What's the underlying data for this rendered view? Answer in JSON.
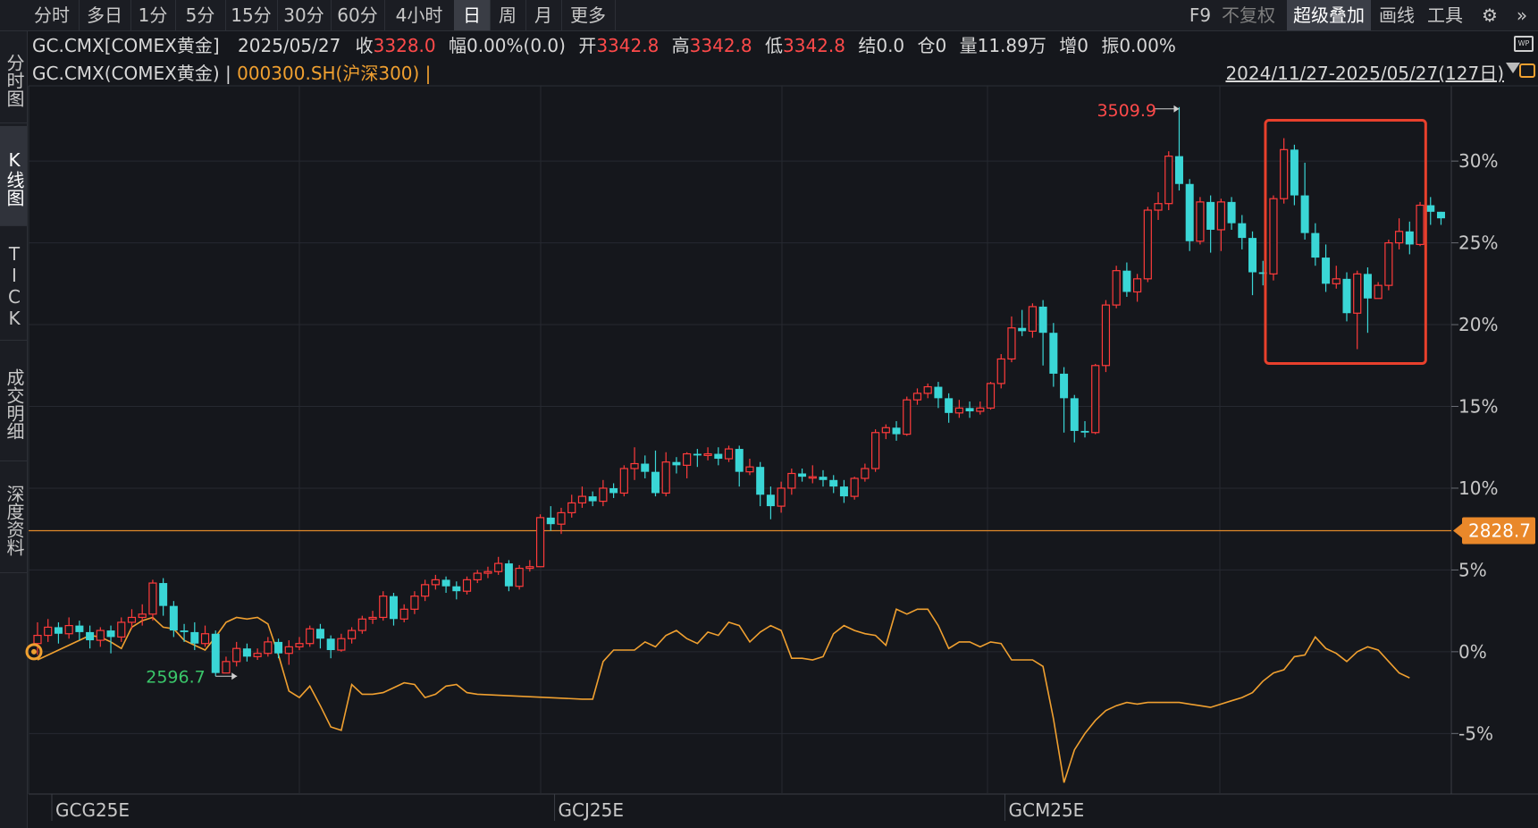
{
  "toolbar": {
    "periods": [
      "分时",
      "多日",
      "1分",
      "5分",
      "15分",
      "30分",
      "60分",
      "4小时",
      "日",
      "周",
      "月",
      "更多"
    ],
    "active_period": "日",
    "right": {
      "f9": "F9",
      "fuquan": "不复权",
      "overlay": "超级叠加",
      "draw": "画线",
      "tools": "工具"
    }
  },
  "sidebar": {
    "tabs": [
      "分时图",
      "K线图",
      "TICK",
      "成交明细",
      "深度资料"
    ],
    "active": "K线图"
  },
  "header": {
    "symbol": "GC.CMX[COMEX黄金]",
    "date": "2025/05/27",
    "close_label": "收",
    "close": "3328.0",
    "change_label": "幅",
    "change": "0.00%(0.0)",
    "open_label": "开",
    "open": "3342.8",
    "high_label": "高",
    "high": "3342.8",
    "low_label": "低",
    "low": "3342.8",
    "settle_label": "结",
    "settle": "0.0",
    "oi_label": "仓",
    "oi": "0",
    "vol_label": "量",
    "vol": "11.89万",
    "inc_label": "增",
    "inc": "0",
    "amp_label": "振",
    "amp": "0.00%"
  },
  "overlay_line": {
    "main": "GC.CMX(COMEX黄金)",
    "sep": " | ",
    "compare": "000300.SH(沪深300)",
    "sep2": " |",
    "range": "2024/11/27-2025/05/27(127日)"
  },
  "chart_data": {
    "type": "candlestick",
    "y_axis_labels": [
      "30%",
      "25%",
      "20%",
      "15%",
      "10%",
      "5%",
      "0%",
      "-5%"
    ],
    "y_ticks": [
      30,
      25,
      20,
      15,
      10,
      5,
      0,
      -5
    ],
    "ylim": [
      -8.7,
      34.6
    ],
    "x_labels": [
      "GCG25E",
      "GCJ25E",
      "GCM25E"
    ],
    "x_label_index": [
      0,
      48,
      91
    ],
    "max_label": "3509.9",
    "min_label": "2596.7",
    "price_line_label": "2828.7",
    "price_line_pct": 7.4,
    "candles_pct": [
      [
        0.5,
        1.0,
        1.8,
        -0.2
      ],
      [
        1.0,
        1.5,
        2.0,
        0.6
      ],
      [
        1.5,
        1.1,
        1.8,
        0.5
      ],
      [
        1.1,
        1.6,
        2.1,
        0.8
      ],
      [
        1.6,
        1.2,
        1.9,
        0.7
      ],
      [
        1.2,
        0.7,
        1.6,
        0.2
      ],
      [
        0.7,
        1.3,
        1.5,
        0.3
      ],
      [
        1.3,
        0.9,
        1.6,
        -0.1
      ],
      [
        0.9,
        1.8,
        2.1,
        0.6
      ],
      [
        1.8,
        2.1,
        2.6,
        1.4
      ],
      [
        2.1,
        2.3,
        2.9,
        1.6
      ],
      [
        2.3,
        4.2,
        4.4,
        1.9
      ],
      [
        4.2,
        2.8,
        4.5,
        2.2
      ],
      [
        2.8,
        1.3,
        3.1,
        0.9
      ],
      [
        1.3,
        1.2,
        1.7,
        0.6
      ],
      [
        1.2,
        0.5,
        1.8,
        0.1
      ],
      [
        0.5,
        1.1,
        1.6,
        0.3
      ],
      [
        1.1,
        -1.3,
        1.3,
        -1.5
      ],
      [
        -1.3,
        -0.6,
        -0.3,
        -1.2
      ],
      [
        -0.6,
        0.2,
        0.6,
        -0.9
      ],
      [
        0.2,
        -0.3,
        0.5,
        -0.6
      ],
      [
        -0.3,
        -0.1,
        0.2,
        -0.5
      ],
      [
        -0.1,
        0.6,
        0.9,
        -0.3
      ],
      [
        0.6,
        -0.1,
        0.8,
        -0.4
      ],
      [
        -0.1,
        0.3,
        0.7,
        -0.8
      ],
      [
        0.3,
        0.5,
        0.9,
        0.1
      ],
      [
        0.5,
        1.4,
        1.6,
        0.3
      ],
      [
        1.4,
        0.8,
        1.7,
        0.2
      ],
      [
        0.8,
        0.1,
        1.0,
        -0.4
      ],
      [
        0.1,
        0.8,
        1.1,
        0.0
      ],
      [
        0.8,
        1.3,
        1.5,
        0.5
      ],
      [
        1.3,
        2.0,
        2.2,
        1.1
      ],
      [
        2.0,
        2.1,
        2.5,
        1.7
      ],
      [
        2.1,
        3.4,
        3.7,
        1.9
      ],
      [
        3.4,
        2.0,
        3.6,
        1.6
      ],
      [
        2.0,
        2.6,
        2.9,
        1.8
      ],
      [
        2.6,
        3.4,
        3.7,
        2.3
      ],
      [
        3.4,
        4.1,
        4.4,
        3.1
      ],
      [
        4.1,
        4.4,
        4.7,
        3.8
      ],
      [
        4.4,
        4.0,
        4.6,
        3.6
      ],
      [
        4.0,
        3.7,
        4.3,
        3.2
      ],
      [
        3.7,
        4.4,
        4.6,
        3.5
      ],
      [
        4.4,
        4.8,
        5.0,
        4.2
      ],
      [
        4.8,
        4.9,
        5.2,
        4.5
      ],
      [
        4.9,
        5.4,
        5.8,
        4.7
      ],
      [
        5.4,
        4.0,
        5.6,
        3.7
      ],
      [
        4.0,
        5.1,
        5.3,
        3.8
      ],
      [
        5.1,
        5.2,
        5.6,
        4.9
      ],
      [
        5.2,
        8.2,
        8.4,
        6.3
      ],
      [
        8.2,
        7.8,
        8.9,
        7.4
      ],
      [
        7.8,
        8.5,
        8.8,
        7.2
      ],
      [
        8.5,
        9.1,
        9.6,
        8.2
      ],
      [
        9.1,
        9.5,
        10.1,
        8.8
      ],
      [
        9.5,
        9.2,
        9.8,
        8.9
      ],
      [
        9.2,
        10.0,
        10.5,
        8.9
      ],
      [
        10.0,
        9.7,
        10.3,
        9.4
      ],
      [
        9.7,
        11.2,
        11.4,
        9.5
      ],
      [
        11.2,
        11.5,
        12.5,
        10.5
      ],
      [
        11.5,
        11.0,
        12.0,
        10.6
      ],
      [
        11.0,
        9.7,
        12.3,
        9.5
      ],
      [
        9.7,
        11.6,
        12.2,
        9.5
      ],
      [
        11.6,
        11.4,
        11.9,
        10.9
      ],
      [
        11.4,
        12.1,
        12.2,
        10.6
      ],
      [
        12.1,
        12.0,
        12.4,
        11.3
      ],
      [
        12.0,
        12.1,
        12.5,
        11.7
      ],
      [
        12.1,
        11.8,
        12.5,
        11.4
      ],
      [
        11.8,
        12.4,
        12.6,
        11.6
      ],
      [
        12.4,
        11.0,
        12.6,
        10.1
      ],
      [
        11.0,
        11.3,
        11.8,
        10.8
      ],
      [
        11.3,
        9.6,
        11.6,
        8.9
      ],
      [
        9.6,
        8.9,
        10.1,
        8.1
      ],
      [
        8.9,
        10.0,
        10.4,
        8.5
      ],
      [
        10.0,
        10.9,
        11.2,
        9.6
      ],
      [
        10.9,
        10.7,
        11.2,
        10.4
      ],
      [
        10.7,
        10.7,
        11.4,
        10.3
      ],
      [
        10.7,
        10.5,
        11.1,
        10.1
      ],
      [
        10.5,
        10.1,
        10.8,
        9.7
      ],
      [
        10.1,
        9.5,
        10.5,
        9.1
      ],
      [
        9.5,
        10.6,
        10.7,
        9.3
      ],
      [
        10.6,
        11.2,
        11.5,
        10.4
      ],
      [
        11.2,
        13.4,
        13.6,
        11.0
      ],
      [
        13.4,
        13.7,
        13.9,
        13.0
      ],
      [
        13.7,
        13.3,
        14.1,
        12.9
      ],
      [
        13.3,
        15.4,
        15.6,
        13.2
      ],
      [
        15.4,
        15.8,
        16.1,
        15.1
      ],
      [
        15.8,
        16.2,
        16.4,
        15.5
      ],
      [
        16.2,
        15.5,
        16.5,
        14.9
      ],
      [
        15.5,
        14.6,
        15.8,
        14.0
      ],
      [
        14.6,
        14.9,
        15.4,
        14.3
      ],
      [
        14.9,
        14.7,
        15.3,
        14.3
      ],
      [
        14.7,
        14.9,
        15.3,
        14.5
      ],
      [
        14.9,
        16.4,
        16.5,
        14.8
      ],
      [
        16.4,
        17.9,
        18.2,
        16.1
      ],
      [
        17.9,
        19.8,
        20.5,
        17.7
      ],
      [
        19.8,
        19.6,
        20.9,
        19.3
      ],
      [
        19.6,
        21.1,
        21.3,
        19.2
      ],
      [
        21.1,
        19.5,
        21.5,
        17.5
      ],
      [
        19.5,
        17.0,
        20.1,
        16.2
      ],
      [
        17.0,
        15.5,
        17.4,
        13.4
      ],
      [
        15.5,
        13.5,
        15.7,
        12.8
      ],
      [
        13.5,
        13.4,
        14.1,
        13.1
      ],
      [
        13.4,
        17.5,
        17.6,
        13.3
      ],
      [
        17.5,
        21.2,
        21.5,
        17.1
      ],
      [
        21.2,
        23.3,
        23.6,
        21.0
      ],
      [
        23.3,
        22.0,
        23.8,
        21.7
      ],
      [
        22.0,
        22.8,
        23.1,
        21.4
      ],
      [
        22.8,
        27.0,
        27.2,
        22.6
      ],
      [
        27.0,
        27.4,
        28.1,
        26.4
      ],
      [
        27.4,
        30.3,
        30.6,
        27.0
      ],
      [
        30.3,
        28.6,
        33.3,
        28.2
      ],
      [
        28.6,
        25.1,
        28.9,
        24.5
      ],
      [
        25.1,
        27.5,
        27.8,
        24.9
      ],
      [
        27.5,
        25.8,
        27.9,
        24.4
      ],
      [
        25.8,
        27.5,
        27.7,
        24.5
      ],
      [
        27.5,
        26.2,
        27.8,
        25.8
      ],
      [
        26.2,
        25.3,
        26.7,
        24.6
      ],
      [
        25.3,
        23.2,
        25.7,
        21.8
      ],
      [
        23.2,
        23.1,
        23.9,
        22.4
      ],
      [
        23.1,
        27.7,
        27.9,
        22.7
      ],
      [
        27.7,
        30.7,
        31.4,
        27.4
      ],
      [
        30.7,
        27.9,
        31.0,
        27.3
      ],
      [
        27.9,
        25.6,
        29.9,
        25.2
      ],
      [
        25.6,
        24.1,
        26.2,
        23.6
      ],
      [
        24.1,
        22.5,
        24.9,
        22.0
      ],
      [
        22.5,
        22.8,
        23.6,
        22.2
      ],
      [
        22.8,
        20.7,
        23.2,
        20.2
      ],
      [
        20.7,
        23.1,
        23.3,
        18.5
      ],
      [
        23.1,
        21.6,
        23.5,
        19.5
      ],
      [
        21.6,
        22.4,
        22.6,
        21.8
      ],
      [
        22.4,
        25.0,
        25.2,
        22.1
      ],
      [
        25.0,
        25.7,
        26.5,
        24.6
      ],
      [
        25.7,
        24.9,
        26.3,
        24.3
      ],
      [
        24.9,
        27.3,
        27.5,
        24.8
      ],
      [
        27.3,
        26.9,
        27.8,
        26.1
      ],
      [
        26.9,
        26.5,
        26.9,
        26.1
      ]
    ],
    "overlay_pct": [
      [
        0,
        -0.5
      ],
      [
        5,
        1.0
      ],
      [
        6,
        0.9
      ],
      [
        7,
        0.6
      ],
      [
        8,
        0.2
      ],
      [
        9,
        1.5
      ],
      [
        10,
        1.9
      ],
      [
        11,
        2.1
      ],
      [
        12,
        1.5
      ],
      [
        13,
        1.4
      ],
      [
        14,
        0.7
      ],
      [
        15,
        0.4
      ],
      [
        16,
        0.1
      ],
      [
        17,
        0.9
      ],
      [
        18,
        1.8
      ],
      [
        19,
        2.1
      ],
      [
        20,
        2.0
      ],
      [
        21,
        2.1
      ],
      [
        22,
        1.7
      ],
      [
        23,
        -0.2
      ],
      [
        24,
        -2.4
      ],
      [
        25,
        -2.8
      ],
      [
        26,
        -2.1
      ],
      [
        27,
        -3.3
      ],
      [
        28,
        -4.6
      ],
      [
        29,
        -4.8
      ],
      [
        30,
        -2.0
      ],
      [
        31,
        -2.6
      ],
      [
        32,
        -2.6
      ],
      [
        33,
        -2.5
      ],
      [
        34,
        -2.2
      ],
      [
        35,
        -1.9
      ],
      [
        36,
        -2.0
      ],
      [
        37,
        -2.8
      ],
      [
        38,
        -2.6
      ],
      [
        39,
        -2.1
      ],
      [
        40,
        -2.0
      ],
      [
        41,
        -2.5
      ],
      [
        42,
        -2.6
      ],
      [
        52,
        -2.9
      ],
      [
        53,
        -2.9
      ],
      [
        54,
        -0.6
      ],
      [
        55,
        0.1
      ],
      [
        56,
        0.1
      ],
      [
        57,
        0.1
      ],
      [
        58,
        0.6
      ],
      [
        59,
        0.3
      ],
      [
        60,
        1.0
      ],
      [
        61,
        1.3
      ],
      [
        62,
        0.8
      ],
      [
        63,
        0.5
      ],
      [
        64,
        1.2
      ],
      [
        65,
        1.0
      ],
      [
        66,
        1.8
      ],
      [
        67,
        1.6
      ],
      [
        68,
        0.6
      ],
      [
        69,
        1.2
      ],
      [
        70,
        1.6
      ],
      [
        71,
        1.3
      ],
      [
        72,
        -0.4
      ],
      [
        73,
        -0.4
      ],
      [
        74,
        -0.5
      ],
      [
        75,
        -0.3
      ],
      [
        76,
        1.1
      ],
      [
        77,
        1.6
      ],
      [
        78,
        1.3
      ],
      [
        79,
        1.1
      ],
      [
        80,
        1.0
      ],
      [
        81,
        0.4
      ],
      [
        82,
        2.6
      ],
      [
        83,
        2.3
      ],
      [
        84,
        2.6
      ],
      [
        85,
        2.6
      ],
      [
        86,
        1.6
      ],
      [
        87,
        0.2
      ],
      [
        88,
        0.6
      ],
      [
        89,
        0.6
      ],
      [
        90,
        0.3
      ],
      [
        91,
        0.6
      ],
      [
        92,
        0.5
      ],
      [
        93,
        -0.5
      ],
      [
        94,
        -0.5
      ],
      [
        95,
        -0.5
      ],
      [
        96,
        -0.9
      ],
      [
        97,
        -4.1
      ],
      [
        98,
        -8.0
      ],
      [
        99,
        -6.0
      ],
      [
        100,
        -5.0
      ],
      [
        101,
        -4.2
      ],
      [
        102,
        -3.6
      ],
      [
        103,
        -3.3
      ],
      [
        104,
        -3.1
      ],
      [
        105,
        -3.2
      ],
      [
        106,
        -3.1
      ],
      [
        107,
        -3.1
      ],
      [
        108,
        -3.1
      ],
      [
        109,
        -3.1
      ],
      [
        110,
        -3.2
      ],
      [
        111,
        -3.3
      ],
      [
        112,
        -3.4
      ],
      [
        113,
        -3.2
      ],
      [
        114,
        -3.0
      ],
      [
        115,
        -2.8
      ],
      [
        116,
        -2.5
      ],
      [
        117,
        -1.8
      ],
      [
        118,
        -1.3
      ],
      [
        119,
        -1.1
      ],
      [
        120,
        -0.3
      ],
      [
        121,
        -0.2
      ],
      [
        122,
        0.9
      ],
      [
        123,
        0.2
      ],
      [
        124,
        -0.1
      ],
      [
        125,
        -0.6
      ],
      [
        126,
        0.0
      ],
      [
        127,
        0.3
      ],
      [
        128,
        0.1
      ],
      [
        129,
        -0.6
      ],
      [
        130,
        -1.3
      ],
      [
        131,
        -1.6
      ]
    ]
  }
}
